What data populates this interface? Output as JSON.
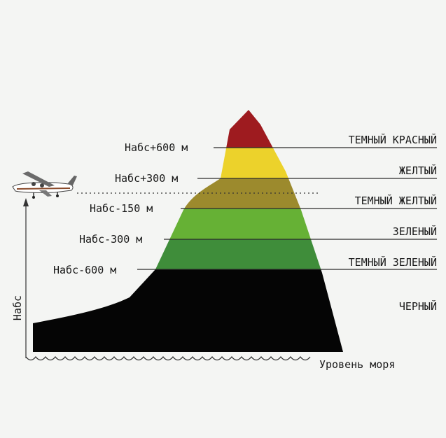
{
  "altitude_labels": [
    "Набс+600 м",
    "Набс+300 м",
    "Набс-150 м",
    "Набс-300 м",
    "Набс-600 м"
  ],
  "zones": [
    {
      "name": "ТЕМНЫЙ КРАСНЫЙ",
      "color": "#9e1b1f"
    },
    {
      "name": "ЖЕЛТЫЙ",
      "color": "#ecd22b"
    },
    {
      "name": "ТЕМНЫЙ ЖЕЛТЫЙ",
      "color": "#9c8a2d"
    },
    {
      "name": "ЗЕЛЕНЫЙ",
      "color": "#66b135"
    },
    {
      "name": "ТЕМНЫЙ ЗЕЛЕНЫЙ",
      "color": "#3f8d3a"
    },
    {
      "name": "ЧЕРНЫЙ",
      "color": "#050505"
    }
  ],
  "axis_label": "Набс",
  "sea_level_label": "Уровень моря",
  "aircraft_icon": "airplane-icon"
}
